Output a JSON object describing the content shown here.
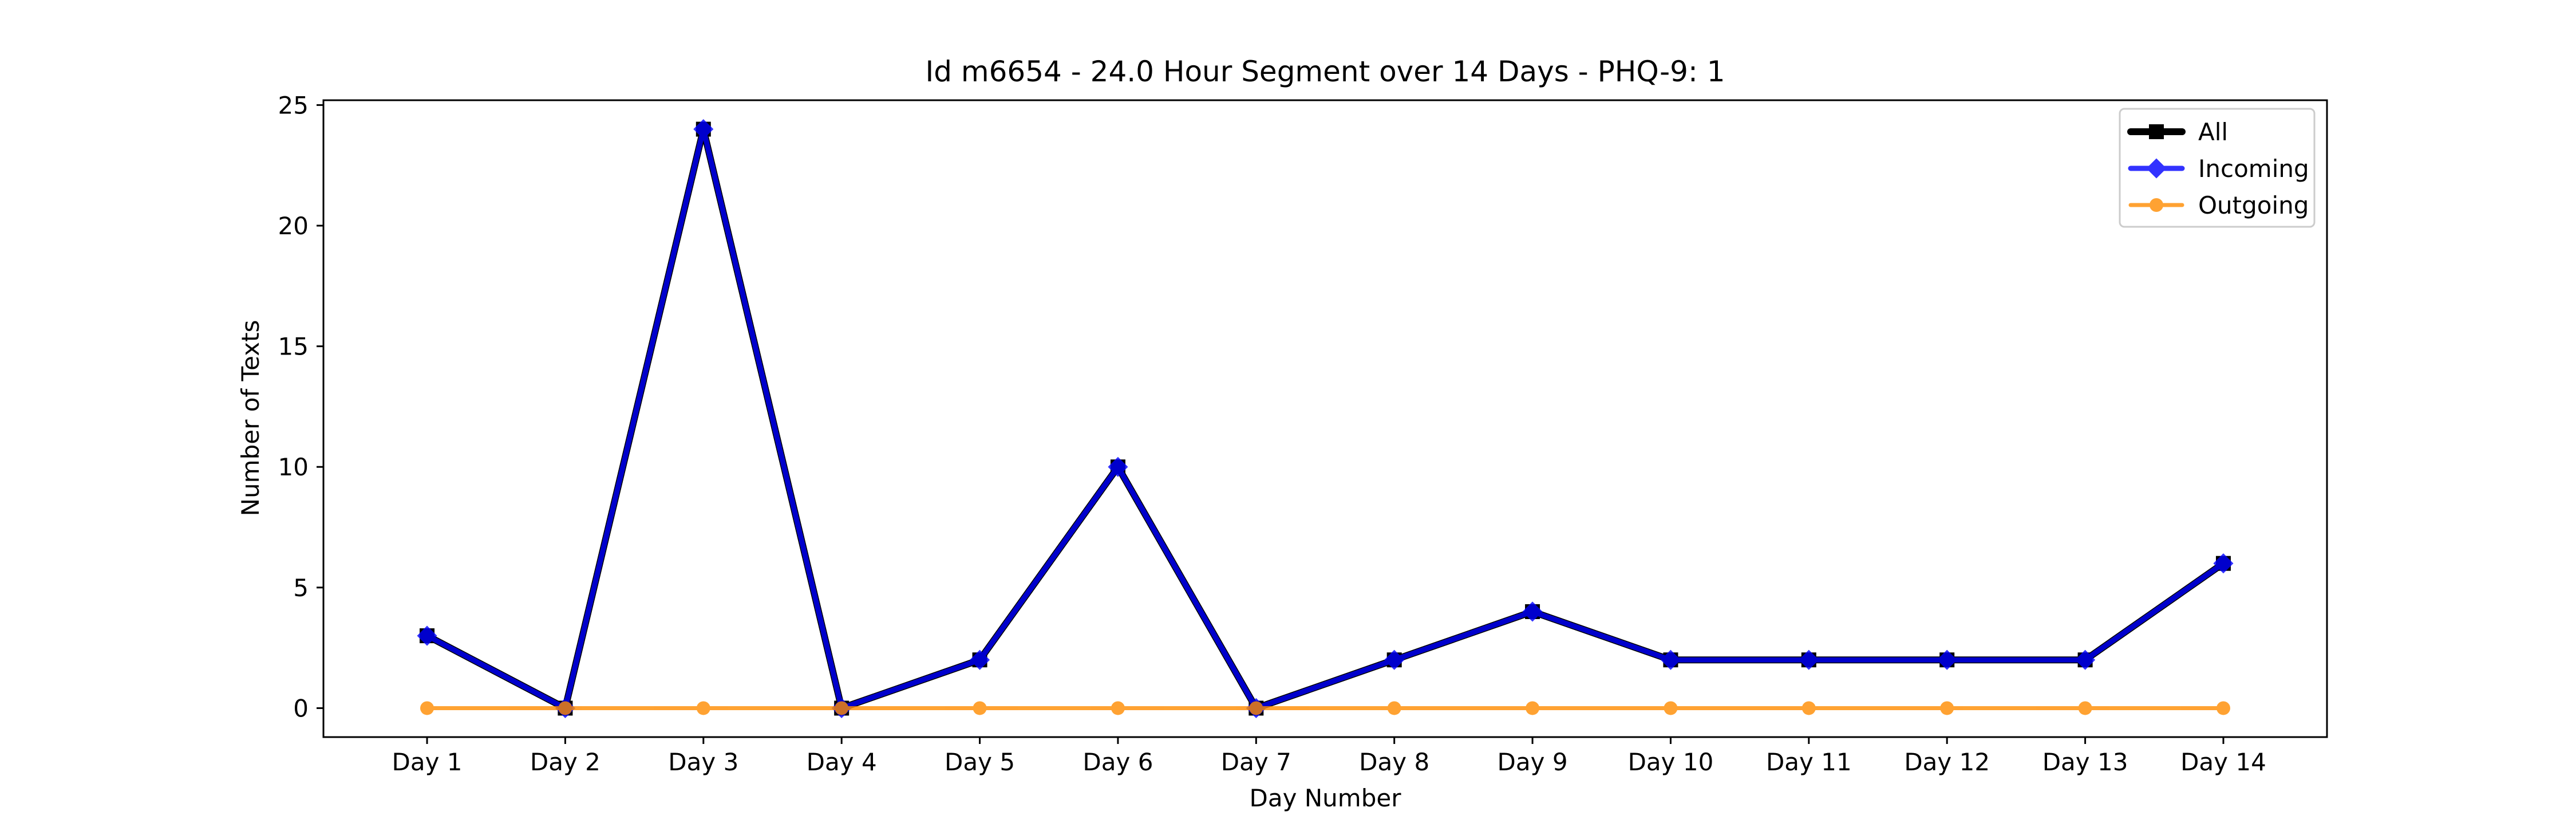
{
  "chart_data": {
    "type": "line",
    "title": "Id m6654 - 24.0 Hour Segment over 14 Days - PHQ-9: 1",
    "xlabel": "Day Number",
    "ylabel": "Number of Texts",
    "categories": [
      "Day 1",
      "Day 2",
      "Day 3",
      "Day 4",
      "Day 5",
      "Day 6",
      "Day 7",
      "Day 8",
      "Day 9",
      "Day 10",
      "Day 11",
      "Day 12",
      "Day 13",
      "Day 14"
    ],
    "ylim": [
      -1.2,
      25.2
    ],
    "yticks": [
      0,
      5,
      10,
      15,
      20,
      25
    ],
    "grid": false,
    "legend": "top-right",
    "series": [
      {
        "name": "All",
        "color": "#000000",
        "marker": "square",
        "values": [
          3,
          0,
          24,
          0,
          2,
          10,
          0,
          2,
          4,
          2,
          2,
          2,
          2,
          6
        ]
      },
      {
        "name": "Incoming",
        "color": "#0000ff",
        "marker": "diamond",
        "values": [
          3,
          0,
          24,
          0,
          2,
          10,
          0,
          2,
          4,
          2,
          2,
          2,
          2,
          6
        ]
      },
      {
        "name": "Outgoing",
        "color": "#ff8c00",
        "marker": "circle",
        "values": [
          0,
          0,
          0,
          0,
          0,
          0,
          0,
          0,
          0,
          0,
          0,
          0,
          0,
          0
        ]
      }
    ]
  }
}
